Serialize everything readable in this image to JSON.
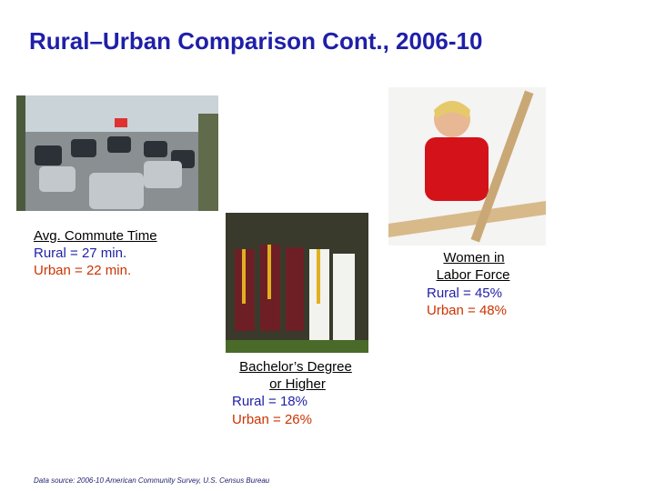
{
  "title": "Rural–Urban Comparison Cont., 2006-10",
  "panels": [
    {
      "heading": [
        "Avg. Commute Time"
      ],
      "rural": "Rural = 27 min.",
      "urban": "Urban = 22 min."
    },
    {
      "heading": [
        "Bachelor’s Degree",
        "or Higher"
      ],
      "rural": "Rural = 18%",
      "urban": "Urban = 26%"
    },
    {
      "heading": [
        "Women in",
        "Labor Force"
      ],
      "rural": "Rural = 45%",
      "urban": "Urban = 48%"
    }
  ],
  "source": "Data source: 2006-10 American Community Survey, U.S. Census Bureau"
}
